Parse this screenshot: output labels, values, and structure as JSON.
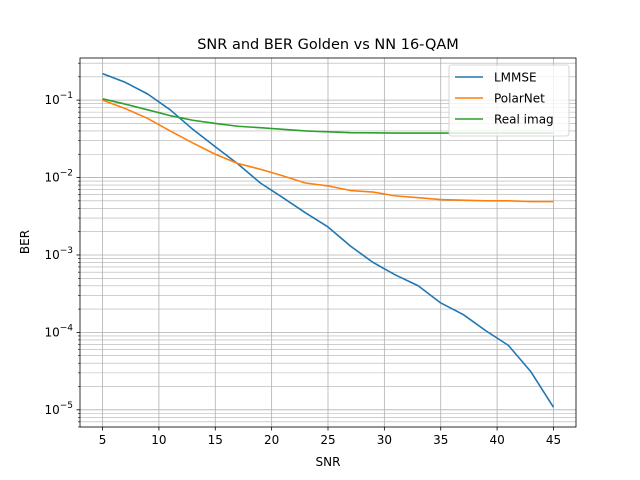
{
  "chart_data": {
    "type": "line",
    "title": "SNR and BER Golden vs NN 16-QAM",
    "xlabel": "SNR",
    "ylabel": "BER",
    "xlim": [
      3,
      47
    ],
    "xticks": [
      5,
      10,
      15,
      20,
      25,
      30,
      35,
      40,
      45
    ],
    "ylim": [
      6e-06,
      0.35
    ],
    "yscale": "log",
    "yticks": [
      {
        "value": 1e-05,
        "base": "10",
        "exp": "−5"
      },
      {
        "value": 0.0001,
        "base": "10",
        "exp": "−4"
      },
      {
        "value": 0.001,
        "base": "10",
        "exp": "−3"
      },
      {
        "value": 0.01,
        "base": "10",
        "exp": "−2"
      },
      {
        "value": 0.1,
        "base": "10",
        "exp": "−1"
      }
    ],
    "grid": "major and minor",
    "legend_position": "upper-right",
    "x": [
      5,
      7,
      9,
      11,
      13,
      15,
      17,
      19,
      21,
      23,
      25,
      27,
      29,
      31,
      33,
      35,
      37,
      39,
      41,
      43,
      45
    ],
    "series": [
      {
        "name": "LMMSE",
        "color": "#1f77b4",
        "values": [
          0.22,
          0.17,
          0.12,
          0.075,
          0.042,
          0.025,
          0.015,
          0.0085,
          0.0055,
          0.0035,
          0.0023,
          0.0013,
          0.0008,
          0.00055,
          0.0004,
          0.00024,
          0.00017,
          0.000105,
          6.8e-05,
          3.1e-05,
          1.08e-05
        ]
      },
      {
        "name": "PolarNet",
        "color": "#ff7f0e",
        "values": [
          0.1,
          0.078,
          0.058,
          0.04,
          0.028,
          0.02,
          0.0152,
          0.0128,
          0.0105,
          0.0085,
          0.0078,
          0.0068,
          0.0065,
          0.0058,
          0.0055,
          0.0052,
          0.0051,
          0.005,
          0.005,
          0.0049,
          0.0049
        ]
      },
      {
        "name": "Real imag",
        "color": "#2ca02c",
        "values": [
          0.104,
          0.089,
          0.075,
          0.063,
          0.055,
          0.05,
          0.046,
          0.044,
          0.042,
          0.04,
          0.039,
          0.038,
          0.0378,
          0.0376,
          0.0375,
          0.0375,
          0.0375,
          0.0375,
          0.0375,
          0.0375,
          0.0375
        ]
      }
    ]
  }
}
